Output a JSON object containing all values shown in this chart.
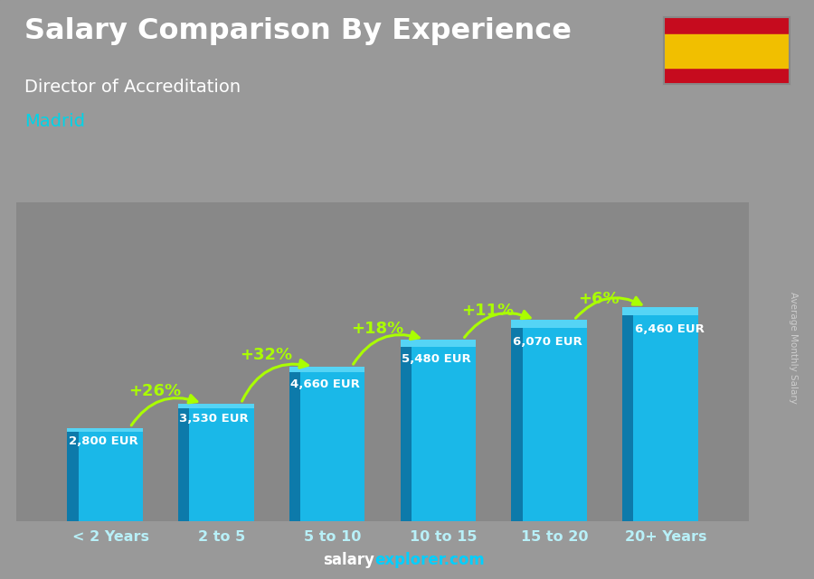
{
  "title": "Salary Comparison By Experience",
  "subtitle": "Director of Accreditation",
  "city": "Madrid",
  "watermark_salary": "salary",
  "watermark_rest": "explorer.com",
  "ylabel": "Average Monthly Salary",
  "categories": [
    "< 2 Years",
    "2 to 5",
    "5 to 10",
    "10 to 15",
    "15 to 20",
    "20+ Years"
  ],
  "values": [
    2800,
    3530,
    4660,
    5480,
    6070,
    6460
  ],
  "labels": [
    "2,800 EUR",
    "3,530 EUR",
    "4,660 EUR",
    "5,480 EUR",
    "6,070 EUR",
    "6,460 EUR"
  ],
  "pct_labels": [
    "+26%",
    "+32%",
    "+18%",
    "+11%",
    "+6%"
  ],
  "label_offsets_x": [
    -0.28,
    -0.28,
    -0.28,
    -0.28,
    -0.28,
    -0.18
  ],
  "pct_label_offsets_x": [
    -0.15,
    -0.1,
    -0.05,
    0.0,
    0.1
  ],
  "bar_front_color": "#1ab8e8",
  "bar_left_color": "#0d7aaa",
  "bar_top_color": "#55d4f5",
  "bg_color": "#9a9a9a",
  "title_color": "#ffffff",
  "subtitle_color": "#ffffff",
  "city_color": "#00d4e8",
  "label_color": "#ffffff",
  "pct_color": "#aaff00",
  "cat_color": "#b8f0f8",
  "arrow_color": "#aaff00",
  "watermark_salary_color": "#ffffff",
  "watermark_explorer_color": "#00cfff",
  "flag_red": "#c60b1e",
  "flag_yellow": "#f1bf00"
}
